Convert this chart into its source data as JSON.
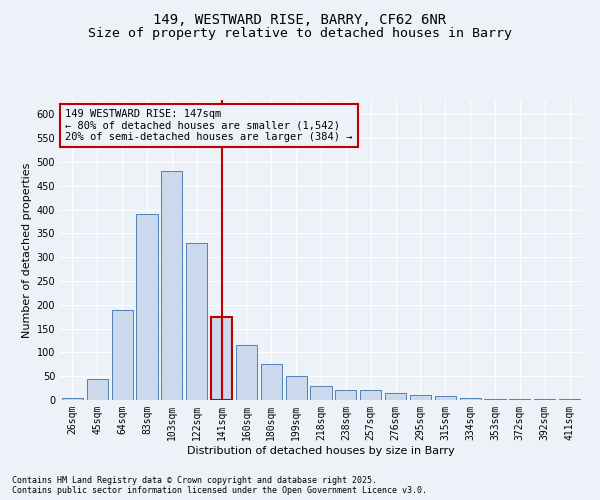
{
  "title_line1": "149, WESTWARD RISE, BARRY, CF62 6NR",
  "title_line2": "Size of property relative to detached houses in Barry",
  "xlabel": "Distribution of detached houses by size in Barry",
  "ylabel": "Number of detached properties",
  "footnote": "Contains HM Land Registry data © Crown copyright and database right 2025.\nContains public sector information licensed under the Open Government Licence v3.0.",
  "categories": [
    "26sqm",
    "45sqm",
    "64sqm",
    "83sqm",
    "103sqm",
    "122sqm",
    "141sqm",
    "160sqm",
    "180sqm",
    "199sqm",
    "218sqm",
    "238sqm",
    "257sqm",
    "276sqm",
    "295sqm",
    "315sqm",
    "334sqm",
    "353sqm",
    "372sqm",
    "392sqm",
    "411sqm"
  ],
  "values": [
    5,
    45,
    190,
    390,
    480,
    330,
    175,
    115,
    75,
    50,
    30,
    20,
    20,
    15,
    10,
    8,
    5,
    3,
    2,
    2,
    2
  ],
  "highlight_index": 6,
  "bar_color": "#ccd9ec",
  "bar_edge_color": "#5080b8",
  "highlight_bar_edge_color": "#c00000",
  "vline_color": "#c00000",
  "annotation_box_color": "#c00000",
  "annotation_text_line1": "149 WESTWARD RISE: 147sqm",
  "annotation_text_line2": "← 80% of detached houses are smaller (1,542)",
  "annotation_text_line3": "20% of semi-detached houses are larger (384) →",
  "ylim": [
    0,
    630
  ],
  "yticks": [
    0,
    50,
    100,
    150,
    200,
    250,
    300,
    350,
    400,
    450,
    500,
    550,
    600
  ],
  "background_color": "#edf2f9",
  "grid_color": "#ffffff",
  "title_fontsize": 10,
  "subtitle_fontsize": 9.5,
  "axis_label_fontsize": 8,
  "tick_fontsize": 7,
  "annotation_fontsize": 7.5,
  "footnote_fontsize": 6
}
